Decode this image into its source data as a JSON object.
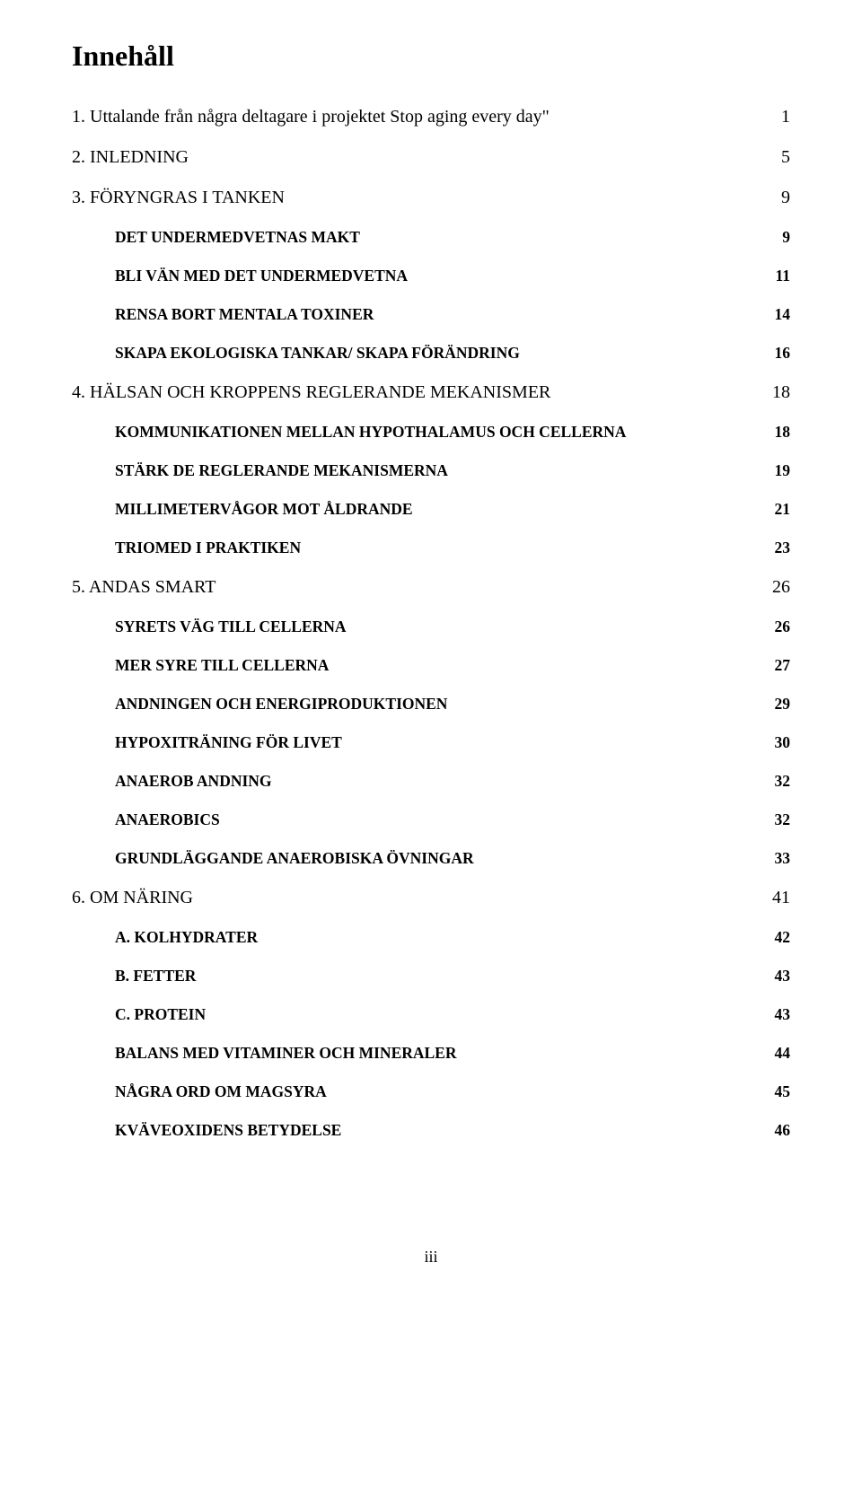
{
  "title": "Innehåll",
  "footer": "iii",
  "entries": [
    {
      "level": 1,
      "label": "1. Uttalande från några deltagare i projektet Stop aging every day\"",
      "page": "1"
    },
    {
      "level": 1,
      "label": "2. INLEDNING",
      "page": "5"
    },
    {
      "level": 1,
      "label": "3. FÖRYNGRAS I TANKEN",
      "page": "9"
    },
    {
      "level": 2,
      "label": "DET UNDERMEDVETNAS MAKT",
      "page": "9"
    },
    {
      "level": 2,
      "label": "BLI VÄN MED DET UNDERMEDVETNA",
      "page": "11"
    },
    {
      "level": 2,
      "label": "RENSA BORT MENTALA TOXINER",
      "page": "14"
    },
    {
      "level": 2,
      "label": "SKAPA EKOLOGISKA TANKAR/ SKAPA FÖRÄNDRING",
      "page": "16"
    },
    {
      "level": 1,
      "label": "4. HÄLSAN OCH KROPPENS REGLERANDE MEKANISMER",
      "page": "18"
    },
    {
      "level": 2,
      "label": "KOMMUNIKATIONEN MELLAN HYPOTHALAMUS OCH CELLERNA",
      "page": "18"
    },
    {
      "level": 2,
      "label": "STÄRK DE REGLERANDE MEKANISMERNA",
      "page": "19"
    },
    {
      "level": 2,
      "label": "MILLIMETERVÅGOR MOT ÅLDRANDE",
      "page": "21"
    },
    {
      "level": 2,
      "label": "TRIOMED I PRAKTIKEN",
      "page": "23"
    },
    {
      "level": 1,
      "label": "5. ANDAS SMART",
      "page": "26"
    },
    {
      "level": 2,
      "label": "SYRETS VÄG TILL CELLERNA",
      "page": "26"
    },
    {
      "level": 2,
      "label": "MER SYRE TILL CELLERNA",
      "page": "27"
    },
    {
      "level": 2,
      "label": "ANDNINGEN OCH ENERGIPRODUKTIONEN",
      "page": "29"
    },
    {
      "level": 2,
      "label": "HYPOXITRÄNING FÖR LIVET",
      "page": "30"
    },
    {
      "level": 2,
      "label": "ANAEROB ANDNING",
      "page": "32"
    },
    {
      "level": 2,
      "label": "ANAEROBICS",
      "page": "32"
    },
    {
      "level": 2,
      "label": "GRUNDLÄGGANDE ANAEROBISKA ÖVNINGAR",
      "page": "33"
    },
    {
      "level": 1,
      "label": "6. OM NÄRING",
      "page": "41"
    },
    {
      "level": 2,
      "label": "A. KOLHYDRATER",
      "page": "42"
    },
    {
      "level": 2,
      "label": "B. FETTER",
      "page": "43"
    },
    {
      "level": 2,
      "label": "C. PROTEIN",
      "page": "43"
    },
    {
      "level": 2,
      "label": "BALANS MED VITAMINER OCH MINERALER",
      "page": "44"
    },
    {
      "level": 2,
      "label": "NÅGRA ORD OM MAGSYRA",
      "page": "45"
    },
    {
      "level": 2,
      "label": "KVÄVEOXIDENS BETYDELSE",
      "page": "46"
    }
  ]
}
